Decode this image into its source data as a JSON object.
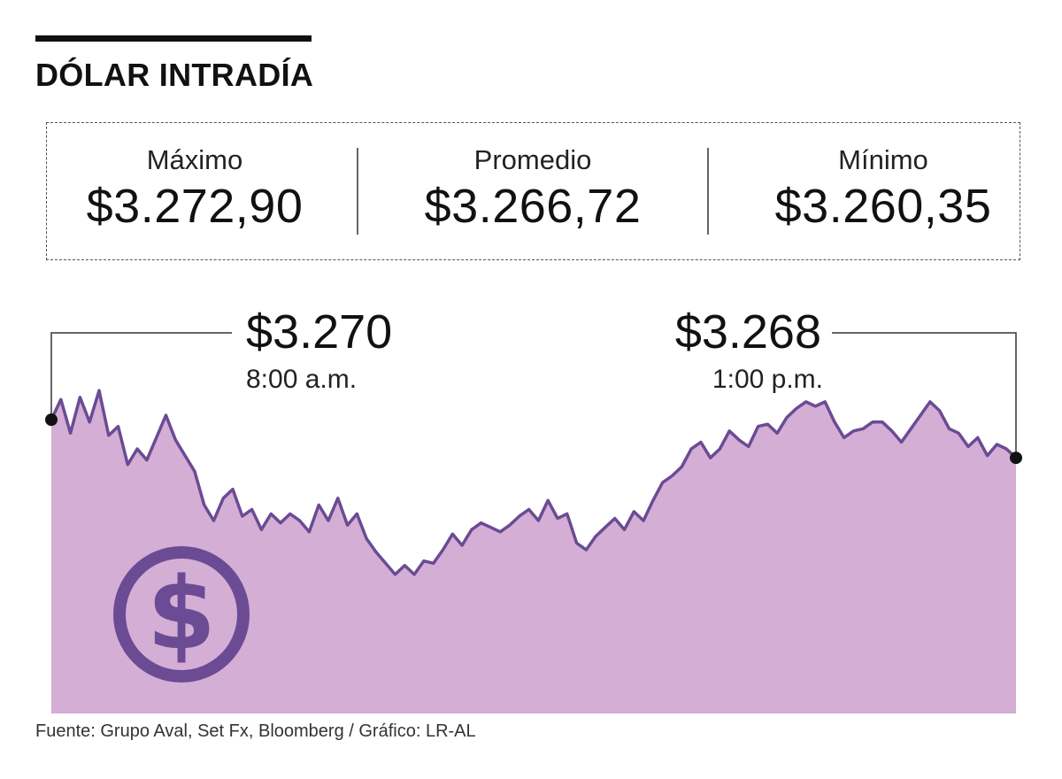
{
  "title": "DÓLAR INTRADÍA",
  "stats": {
    "max": {
      "label": "Máximo",
      "value": "$3.272,90"
    },
    "avg": {
      "label": "Promedio",
      "value": "$3.266,72"
    },
    "min": {
      "label": "Mínimo",
      "value": "$3.260,35"
    }
  },
  "chart_data": {
    "type": "area",
    "title": "",
    "xlabel": "",
    "ylabel": "",
    "ylim": [
      3256,
      3274
    ],
    "x_range": [
      7.95,
      13.0
    ],
    "grid": false,
    "colors": {
      "fill": "#d4aed4",
      "line": "#6a4b94",
      "icon": "#6a4b94"
    },
    "icon": "dollar-coin-icon",
    "series": [
      {
        "x": [
          7.95,
          8.0,
          8.05,
          8.1,
          8.15,
          8.2,
          8.25,
          8.3,
          8.35,
          8.4,
          8.45,
          8.5,
          8.55,
          8.6,
          8.65,
          8.7,
          8.75,
          8.8,
          8.85,
          8.9,
          8.95,
          9.0,
          9.05,
          9.1,
          9.15,
          9.2,
          9.25,
          9.3,
          9.35,
          9.4,
          9.45,
          9.5,
          9.55,
          9.6,
          9.65,
          9.7,
          9.75,
          9.8,
          9.85,
          9.9,
          9.95,
          10.0,
          10.05,
          10.1,
          10.15,
          10.2,
          10.25,
          10.3,
          10.35,
          10.4,
          10.45,
          10.5,
          10.55,
          10.6,
          10.65,
          10.7,
          10.75,
          10.8,
          10.85,
          10.9,
          10.95,
          11.0,
          11.05,
          11.1,
          11.15,
          11.2,
          11.25,
          11.3,
          11.35,
          11.4,
          11.45,
          11.5,
          11.55,
          11.6,
          11.65,
          11.7,
          11.75,
          11.8,
          11.85,
          11.9,
          11.95,
          12.0,
          12.05,
          12.1,
          12.15,
          12.2,
          12.25,
          12.3,
          12.35,
          12.4,
          12.45,
          12.5,
          12.55,
          12.6,
          12.65,
          12.7,
          12.75,
          12.8,
          12.85,
          12.9,
          12.95,
          13.0
        ],
        "y": [
          3269.1,
          3270.0,
          3268.5,
          3270.1,
          3269.0,
          3270.4,
          3268.4,
          3268.8,
          3267.1,
          3267.8,
          3267.3,
          3268.3,
          3269.3,
          3268.2,
          3267.5,
          3266.8,
          3265.3,
          3264.6,
          3265.6,
          3266.0,
          3264.8,
          3265.1,
          3264.2,
          3264.9,
          3264.5,
          3264.9,
          3264.6,
          3264.1,
          3265.3,
          3264.6,
          3265.6,
          3264.4,
          3264.9,
          3263.8,
          3263.2,
          3262.7,
          3262.2,
          3262.6,
          3262.2,
          3262.8,
          3262.7,
          3263.3,
          3264.0,
          3263.5,
          3264.2,
          3264.5,
          3264.3,
          3264.1,
          3264.4,
          3264.8,
          3265.1,
          3264.6,
          3265.5,
          3264.7,
          3264.9,
          3263.6,
          3263.3,
          3263.9,
          3264.3,
          3264.7,
          3264.2,
          3265.0,
          3264.6,
          3265.5,
          3266.3,
          3266.6,
          3267.0,
          3267.8,
          3268.1,
          3267.4,
          3267.8,
          3268.6,
          3268.2,
          3267.9,
          3268.8,
          3268.9,
          3268.5,
          3269.2,
          3269.6,
          3269.9,
          3269.7,
          3269.9,
          3269.0,
          3268.3,
          3268.6,
          3268.7,
          3269.0,
          3269.0,
          3268.6,
          3268.1,
          3268.7,
          3269.3,
          3269.9,
          3269.5,
          3268.7,
          3268.5,
          3267.9,
          3268.3,
          3267.5,
          3268.0,
          3267.8,
          3267.4
        ]
      }
    ],
    "annotations": [
      {
        "x": 7.95,
        "y": 3269.1,
        "value": "$3.270",
        "time": "8:00 a.m."
      },
      {
        "x": 13.0,
        "y": 3267.4,
        "value": "$3.268",
        "time": "1:00 p.m."
      }
    ]
  },
  "source": "Fuente: Grupo Aval, Set Fx, Bloomberg / Gráfico: LR-AL"
}
